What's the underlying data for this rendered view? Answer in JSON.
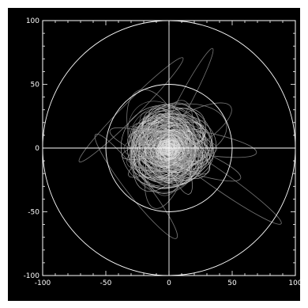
{
  "chart_data": {
    "type": "line",
    "title": "",
    "xlabel": "",
    "ylabel": "",
    "xlim": [
      -100,
      100
    ],
    "ylim": [
      -100,
      100
    ],
    "x_ticks": [
      -100,
      -50,
      0,
      50,
      100
    ],
    "y_ticks": [
      -100,
      -50,
      0,
      50,
      100
    ],
    "x_tick_labels": [
      "-100",
      "-50",
      "0",
      "50",
      "100"
    ],
    "y_tick_labels": [
      "-100",
      "-50",
      "0",
      "50",
      "100"
    ],
    "reference_circles": [
      {
        "name": "outer-circle",
        "radius": 100
      },
      {
        "name": "inner-circle",
        "radius": 50
      }
    ],
    "crosshair": true,
    "grid": false,
    "colors": {
      "background": "#000000",
      "axes": "#ffffff",
      "orbits_dim": "#8c8c8c",
      "orbits_bright": "#d8d8d8"
    },
    "orbits_description": "Dense tangle of overlapping eccentric orbit traces concentrated within radius ~40 of the origin, with several elongated loops reaching toward (-60, 60), (30, 70), (70, -50) and (-50, -60)."
  }
}
